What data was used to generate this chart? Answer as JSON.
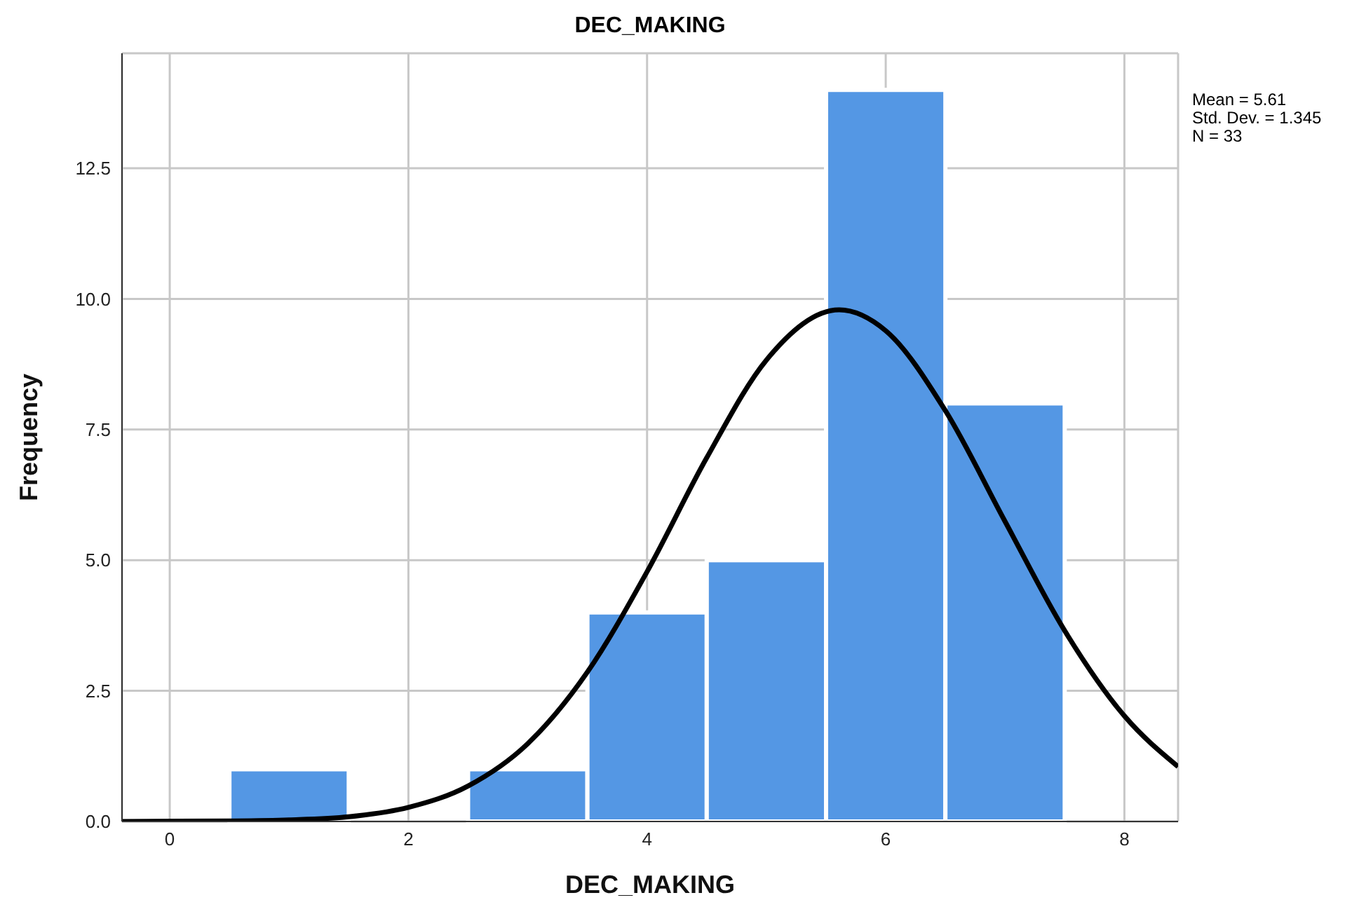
{
  "chart_data": {
    "type": "histogram",
    "title": "DEC_MAKING",
    "xlabel": "DEC_MAKING",
    "ylabel": "Frequency",
    "bins": [
      0.5,
      1.5,
      2.5,
      3.5,
      4.5,
      5.5,
      6.5,
      7.5
    ],
    "values": [
      1,
      0,
      1,
      4,
      5,
      14,
      8
    ],
    "color": "#5497e4",
    "series": [
      {
        "type": "line",
        "color": "#000000",
        "x": [
          -0.4,
          0.5,
          1,
          1.5,
          2,
          2.5,
          3,
          3.5,
          4,
          4.5,
          5,
          5.61,
          6,
          6.5,
          7,
          7.5,
          8,
          8.45
        ],
        "values": [
          0,
          0.01,
          0.03,
          0.09,
          0.27,
          0.68,
          1.49,
          2.86,
          4.78,
          6.96,
          8.83,
          9.79,
          9.39,
          7.86,
          5.74,
          3.65,
          2.02,
          1.05
        ]
      }
    ],
    "xlim": [
      -0.4,
      8.45
    ],
    "xticks": [
      0,
      2,
      4,
      6,
      8
    ],
    "ylim": [
      0,
      14.7
    ],
    "yticks": [
      {
        "value": 0,
        "label": "0.0"
      },
      {
        "value": 2.5,
        "label": "2.5"
      },
      {
        "value": 5,
        "label": "5.0"
      },
      {
        "value": 7.5,
        "label": "7.5"
      },
      {
        "value": 10,
        "label": "10.0"
      },
      {
        "value": 12.5,
        "label": "12.5"
      }
    ],
    "grid": true,
    "marker": "none",
    "annotations": [
      "Mean = 5.61",
      "Std. Dev. = 1.345",
      "N = 33"
    ]
  }
}
